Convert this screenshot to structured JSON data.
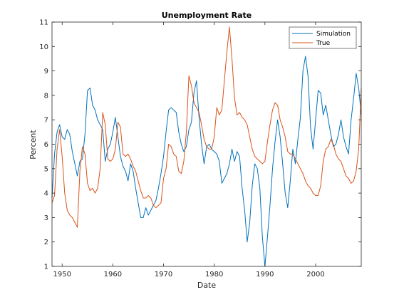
{
  "chart_data": {
    "type": "line",
    "title": "Unemployment Rate",
    "xlabel": "Date",
    "ylabel": "Percent",
    "xlim": [
      1948,
      2009
    ],
    "ylim": [
      1,
      11
    ],
    "xticks": [
      1950,
      1960,
      1970,
      1980,
      1990,
      2000
    ],
    "yticks": [
      1,
      2,
      3,
      4,
      5,
      6,
      7,
      8,
      9,
      10,
      11
    ],
    "legend_position": "top-right",
    "grid": false,
    "series": [
      {
        "name": "Simulation",
        "color": "#0072BD",
        "x": [
          1948.0,
          1948.5,
          1949.0,
          1949.5,
          1950.0,
          1950.5,
          1951.0,
          1951.5,
          1952.0,
          1952.5,
          1953.0,
          1953.5,
          1954.0,
          1954.5,
          1955.0,
          1955.5,
          1956.0,
          1956.5,
          1957.0,
          1957.5,
          1958.0,
          1958.5,
          1959.0,
          1959.5,
          1960.0,
          1960.5,
          1961.0,
          1961.5,
          1962.0,
          1962.5,
          1963.0,
          1963.5,
          1964.0,
          1964.5,
          1965.0,
          1965.5,
          1966.0,
          1966.5,
          1967.0,
          1967.5,
          1968.0,
          1968.5,
          1969.0,
          1969.5,
          1970.0,
          1970.5,
          1971.0,
          1971.5,
          1972.0,
          1972.5,
          1973.0,
          1973.5,
          1974.0,
          1974.5,
          1975.0,
          1975.5,
          1976.0,
          1976.5,
          1977.0,
          1977.5,
          1978.0,
          1978.5,
          1979.0,
          1979.5,
          1980.0,
          1980.5,
          1981.0,
          1981.5,
          1982.0,
          1982.5,
          1983.0,
          1983.5,
          1984.0,
          1984.5,
          1985.0,
          1985.5,
          1986.0,
          1986.5,
          1987.0,
          1987.5,
          1988.0,
          1988.5,
          1989.0,
          1989.5,
          1990.0,
          1990.5,
          1991.0,
          1991.5,
          1992.0,
          1992.5,
          1993.0,
          1993.5,
          1994.0,
          1994.5,
          1995.0,
          1995.5,
          1996.0,
          1996.5,
          1997.0,
          1997.5,
          1998.0,
          1998.5,
          1999.0,
          1999.5,
          2000.0,
          2000.5,
          2001.0,
          2001.5,
          2002.0,
          2002.5,
          2003.0,
          2003.5,
          2004.0,
          2004.5,
          2005.0,
          2005.5,
          2006.0,
          2006.5,
          2007.0,
          2007.5,
          2008.0,
          2008.5,
          2009.0
        ],
        "values": [
          3.8,
          5.6,
          6.5,
          6.8,
          6.3,
          6.2,
          6.6,
          6.4,
          5.7,
          5.2,
          4.7,
          5.3,
          5.4,
          6.4,
          8.2,
          8.3,
          7.6,
          7.4,
          7.0,
          6.8,
          6.6,
          5.3,
          5.8,
          6.0,
          6.5,
          7.1,
          6.3,
          5.5,
          5.1,
          4.9,
          4.5,
          5.2,
          4.9,
          4.2,
          3.6,
          3.0,
          3.0,
          3.4,
          3.1,
          3.3,
          3.5,
          3.7,
          4.2,
          4.8,
          5.5,
          6.5,
          7.4,
          7.5,
          7.4,
          7.3,
          6.5,
          6.0,
          5.7,
          5.9,
          6.6,
          6.9,
          8.1,
          8.6,
          7.1,
          6.0,
          5.2,
          5.9,
          6.0,
          5.8,
          5.7,
          5.6,
          5.3,
          4.4,
          4.6,
          4.8,
          5.2,
          5.8,
          5.3,
          5.7,
          5.5,
          4.2,
          3.3,
          2.0,
          2.8,
          4.3,
          5.2,
          5.0,
          4.2,
          2.2,
          1.0,
          2.2,
          3.5,
          5.0,
          6.1,
          7.0,
          6.3,
          5.2,
          4.0,
          3.4,
          4.5,
          5.8,
          5.2,
          6.2,
          7.1,
          9.0,
          9.6,
          8.8,
          6.7,
          5.8,
          7.0,
          8.2,
          8.1,
          7.2,
          7.6,
          7.0,
          6.4,
          5.9,
          6.0,
          6.4,
          7.0,
          6.3,
          5.9,
          5.6,
          7.0,
          7.9,
          8.9,
          8.3,
          7.2
        ]
      },
      {
        "name": "True",
        "color": "#D95319",
        "x": [
          1948.0,
          1948.5,
          1949.0,
          1949.5,
          1950.0,
          1950.5,
          1951.0,
          1951.5,
          1952.0,
          1952.5,
          1953.0,
          1953.5,
          1954.0,
          1954.5,
          1955.0,
          1955.5,
          1956.0,
          1956.5,
          1957.0,
          1957.5,
          1958.0,
          1958.5,
          1959.0,
          1959.5,
          1960.0,
          1960.5,
          1961.0,
          1961.5,
          1962.0,
          1962.5,
          1963.0,
          1963.5,
          1964.0,
          1964.5,
          1965.0,
          1965.5,
          1966.0,
          1966.5,
          1967.0,
          1967.5,
          1968.0,
          1968.5,
          1969.0,
          1969.5,
          1970.0,
          1970.5,
          1971.0,
          1971.5,
          1972.0,
          1972.5,
          1973.0,
          1973.5,
          1974.0,
          1974.5,
          1975.0,
          1975.5,
          1976.0,
          1976.5,
          1977.0,
          1977.5,
          1978.0,
          1978.5,
          1979.0,
          1979.5,
          1980.0,
          1980.5,
          1981.0,
          1981.5,
          1982.0,
          1982.5,
          1983.0,
          1983.5,
          1984.0,
          1984.5,
          1985.0,
          1985.5,
          1986.0,
          1986.5,
          1987.0,
          1987.5,
          1988.0,
          1988.5,
          1989.0,
          1989.5,
          1990.0,
          1990.5,
          1991.0,
          1991.5,
          1992.0,
          1992.5,
          1993.0,
          1993.5,
          1994.0,
          1994.5,
          1995.0,
          1995.5,
          1996.0,
          1996.5,
          1997.0,
          1997.5,
          1998.0,
          1998.5,
          1999.0,
          1999.5,
          2000.0,
          2000.5,
          2001.0,
          2001.5,
          2002.0,
          2002.5,
          2003.0,
          2003.5,
          2004.0,
          2004.5,
          2005.0,
          2005.5,
          2006.0,
          2006.5,
          2007.0,
          2007.5,
          2008.0,
          2008.5,
          2009.0
        ],
        "values": [
          3.6,
          3.9,
          5.8,
          6.6,
          5.5,
          4.0,
          3.3,
          3.1,
          3.0,
          2.8,
          2.6,
          4.9,
          5.9,
          5.6,
          4.4,
          4.1,
          4.2,
          4.0,
          4.2,
          5.0,
          7.3,
          6.8,
          5.4,
          5.3,
          5.4,
          5.8,
          6.9,
          6.7,
          5.6,
          5.5,
          5.6,
          5.4,
          5.1,
          4.9,
          4.5,
          4.1,
          3.8,
          3.8,
          3.9,
          3.8,
          3.5,
          3.4,
          3.5,
          3.6,
          4.6,
          5.0,
          6.0,
          5.9,
          5.6,
          5.5,
          4.9,
          4.8,
          5.3,
          6.5,
          8.8,
          8.4,
          7.7,
          7.5,
          7.3,
          6.8,
          6.2,
          5.9,
          5.8,
          5.8,
          6.3,
          7.5,
          7.2,
          7.4,
          8.6,
          9.8,
          10.8,
          9.5,
          7.9,
          7.2,
          7.3,
          7.1,
          7.0,
          6.8,
          6.3,
          5.8,
          5.5,
          5.4,
          5.3,
          5.2,
          5.3,
          6.1,
          6.8,
          7.4,
          7.7,
          7.6,
          7.0,
          6.7,
          6.3,
          5.7,
          5.6,
          5.6,
          5.4,
          5.2,
          5.0,
          4.8,
          4.5,
          4.3,
          4.2,
          4.0,
          3.9,
          3.9,
          4.3,
          5.3,
          5.8,
          5.9,
          6.2,
          6.0,
          5.6,
          5.4,
          5.3,
          5.0,
          4.7,
          4.6,
          4.4,
          4.5,
          4.9,
          5.8,
          8.3
        ]
      }
    ]
  }
}
